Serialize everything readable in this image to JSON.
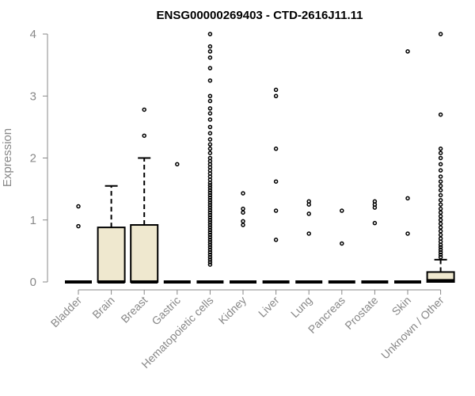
{
  "chart_data": {
    "type": "box",
    "title": "ENSG00000269403 - CTD-2616J11.11",
    "xlabel": "",
    "ylabel": "Expression",
    "ylim": [
      0,
      4
    ],
    "yticks": [
      "0",
      "1",
      "2",
      "3",
      "4"
    ],
    "box_fill": "#efe8cf",
    "categories": [
      "Bladder",
      "Brain",
      "Breast",
      "Gastric",
      "Hematopoietic cells",
      "Kidney",
      "Liver",
      "Lung",
      "Pancreas",
      "Prostate",
      "Skin",
      "Unknown / Other"
    ],
    "boxes": [
      {
        "q1": 0,
        "median": 0,
        "q3": 0,
        "whisker_low": 0,
        "whisker_high": 0,
        "outliers": [
          0.9,
          1.22
        ]
      },
      {
        "q1": 0,
        "median": 0,
        "q3": 0.88,
        "whisker_low": 0,
        "whisker_high": 1.55,
        "outliers": []
      },
      {
        "q1": 0,
        "median": 0,
        "q3": 0.92,
        "whisker_low": 0,
        "whisker_high": 2.0,
        "outliers": [
          2.36,
          2.78
        ]
      },
      {
        "q1": 0,
        "median": 0,
        "q3": 0,
        "whisker_low": 0,
        "whisker_high": 0,
        "outliers": [
          1.9
        ]
      },
      {
        "q1": 0,
        "median": 0,
        "q3": 0,
        "whisker_low": 0,
        "whisker_high": 0,
        "outliers": [
          0.28,
          0.32,
          0.36,
          0.4,
          0.44,
          0.48,
          0.52,
          0.56,
          0.6,
          0.64,
          0.68,
          0.72,
          0.76,
          0.8,
          0.84,
          0.88,
          0.92,
          0.96,
          1.0,
          1.04,
          1.08,
          1.12,
          1.16,
          1.2,
          1.24,
          1.28,
          1.32,
          1.36,
          1.4,
          1.44,
          1.48,
          1.52,
          1.56,
          1.6,
          1.65,
          1.7,
          1.75,
          1.8,
          1.85,
          1.9,
          1.95,
          2.0,
          2.08,
          2.15,
          2.22,
          2.3,
          2.4,
          2.5,
          2.62,
          2.72,
          2.8,
          2.92,
          3.0,
          3.25,
          3.45,
          3.62,
          3.72,
          3.8,
          4.0
        ]
      },
      {
        "q1": 0,
        "median": 0,
        "q3": 0,
        "whisker_low": 0,
        "whisker_high": 0,
        "outliers": [
          0.92,
          0.98,
          1.12,
          1.18,
          1.43
        ]
      },
      {
        "q1": 0,
        "median": 0,
        "q3": 0,
        "whisker_low": 0,
        "whisker_high": 0,
        "outliers": [
          0.68,
          1.15,
          1.62,
          2.15,
          3.0,
          3.1
        ]
      },
      {
        "q1": 0,
        "median": 0,
        "q3": 0,
        "whisker_low": 0,
        "whisker_high": 0,
        "outliers": [
          0.78,
          1.1,
          1.25,
          1.3
        ]
      },
      {
        "q1": 0,
        "median": 0,
        "q3": 0,
        "whisker_low": 0,
        "whisker_high": 0,
        "outliers": [
          0.62,
          1.15
        ]
      },
      {
        "q1": 0,
        "median": 0,
        "q3": 0,
        "whisker_low": 0,
        "whisker_high": 0,
        "outliers": [
          0.95,
          1.2,
          1.25,
          1.3
        ]
      },
      {
        "q1": 0,
        "median": 0,
        "q3": 0,
        "whisker_low": 0,
        "whisker_high": 0,
        "outliers": [
          0.78,
          1.35,
          3.72
        ]
      },
      {
        "q1": 0,
        "median": 0.02,
        "q3": 0.16,
        "whisker_low": 0,
        "whisker_high": 0.36,
        "outliers": [
          0.4,
          0.44,
          0.48,
          0.52,
          0.56,
          0.6,
          0.65,
          0.7,
          0.76,
          0.82,
          0.88,
          0.94,
          1.0,
          1.06,
          1.12,
          1.18,
          1.25,
          1.32,
          1.4,
          1.48,
          1.55,
          1.62,
          1.7,
          1.8,
          1.9,
          2.0,
          2.08,
          2.15,
          2.7,
          4.0
        ]
      }
    ]
  }
}
